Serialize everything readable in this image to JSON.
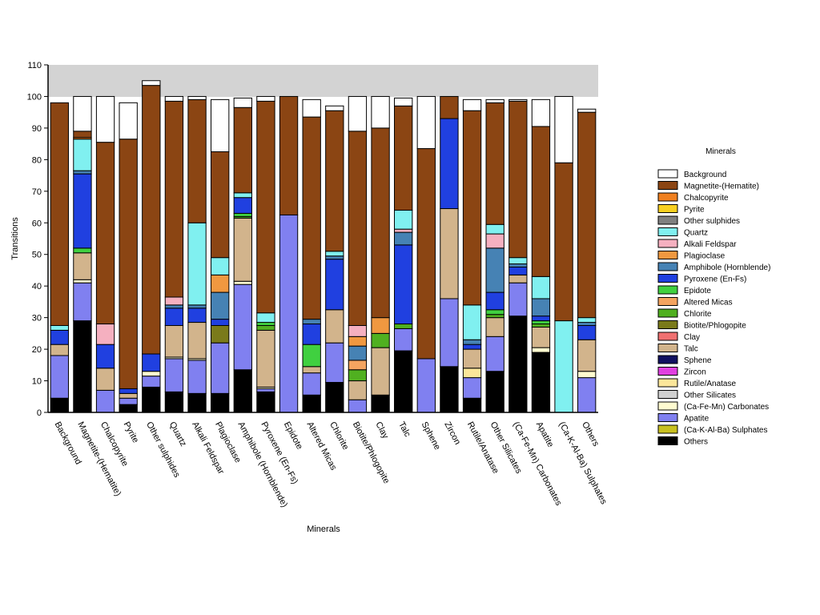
{
  "chart_data": {
    "type": "bar",
    "stacked": true,
    "xlabel": "Minerals",
    "ylabel": "Transitions",
    "ylim": [
      0,
      110
    ],
    "yticks": [
      0,
      10,
      20,
      30,
      40,
      50,
      60,
      70,
      80,
      90,
      100,
      110
    ],
    "legend_title": "Minerals",
    "legend_position": "right",
    "categories": [
      "Background",
      "Magnetite-(Hematite)",
      "Chalcopyrite",
      "Pyrite",
      "Other sulphides",
      "Quartz",
      "Alkali Feldspar",
      "Plagioclase",
      "Amphibole (Hornblende)",
      "Pyroxene (En-Fs)",
      "Epidote",
      "Altered Micas",
      "Chlorite",
      "Biotite/Phlogopite",
      "Clay",
      "Talc",
      "Sphene",
      "Zircon",
      "Rutile/Anatase",
      "Other Silicates",
      "(Ca-Fe-Mn) Carbonates",
      "Apatite",
      "(Ca-K-Al-Ba) Sulphates",
      "Others"
    ],
    "series": [
      {
        "name": "Others",
        "color": "#000000",
        "values": [
          4.5,
          29,
          0,
          2.5,
          8,
          6.5,
          6,
          6,
          13.5,
          6.5,
          0,
          5.5,
          9.5,
          0,
          5.5,
          19.5,
          0,
          14.5,
          4.5,
          13,
          30.5,
          19,
          0,
          0
        ]
      },
      {
        "name": "(Ca-K-Al-Ba) Sulphates",
        "color": "#c8c020",
        "values": [
          0,
          0,
          0,
          0,
          0,
          0,
          0,
          0,
          0,
          0,
          0,
          0,
          0,
          0,
          0,
          0,
          0,
          0,
          0,
          0,
          0,
          0,
          0,
          0
        ]
      },
      {
        "name": "Apatite",
        "color": "#8080f0",
        "values": [
          13.5,
          12,
          7,
          2,
          3.5,
          10.5,
          10.5,
          16,
          27,
          1,
          62.5,
          7,
          12.5,
          4,
          0,
          7,
          17,
          21.5,
          6.5,
          11,
          10.5,
          0,
          0,
          11
        ]
      },
      {
        "name": "(Ca-Fe-Mn) Carbonates",
        "color": "#fffbd0",
        "values": [
          0,
          1,
          0,
          0,
          1.5,
          0.5,
          0.5,
          0,
          1,
          0.5,
          0,
          0,
          0,
          0,
          0,
          0,
          0,
          0,
          0,
          0,
          0,
          1.5,
          0,
          2
        ]
      },
      {
        "name": "Other Silicates",
        "color": "#d0d0d0",
        "values": [
          0,
          0,
          0,
          0,
          0,
          0,
          0,
          0,
          0,
          0,
          0,
          0,
          0,
          0,
          0,
          0,
          0,
          0,
          0,
          0,
          0,
          0,
          0,
          0
        ]
      },
      {
        "name": "Rutile/Anatase",
        "color": "#fbe69a",
        "values": [
          0,
          0,
          0,
          0,
          0,
          0,
          0,
          0,
          0,
          0,
          0,
          0,
          0,
          0,
          0,
          0,
          0,
          0,
          3,
          0,
          0,
          0,
          0,
          0
        ]
      },
      {
        "name": "Zircon",
        "color": "#e040e0",
        "values": [
          0,
          0,
          0,
          0,
          0,
          0,
          0,
          0,
          0,
          0,
          0,
          0,
          0,
          0,
          0,
          0,
          0,
          0,
          0,
          0,
          0,
          0,
          0,
          0
        ]
      },
      {
        "name": "Sphene",
        "color": "#101060",
        "values": [
          0,
          0,
          0,
          0,
          0,
          0,
          0,
          0,
          0,
          0,
          0,
          0,
          0,
          0,
          0,
          0,
          0,
          0,
          0,
          0,
          0,
          0,
          0,
          0
        ]
      },
      {
        "name": "Talc",
        "color": "#d2b48c",
        "values": [
          3.5,
          8.5,
          7,
          1.5,
          0,
          10,
          11.5,
          0,
          20,
          18,
          0,
          2,
          10.5,
          6,
          15,
          0,
          0,
          28.5,
          6,
          6,
          2.5,
          6.5,
          0,
          10
        ]
      },
      {
        "name": "Clay",
        "color": "#f07070",
        "values": [
          0,
          0,
          0,
          0,
          0,
          0,
          0,
          0,
          0,
          0,
          0,
          0,
          0,
          0,
          0,
          0,
          0,
          0,
          0,
          0,
          0,
          0,
          0,
          0
        ]
      },
      {
        "name": "Biotite/Phlogopite",
        "color": "#7a7a1a",
        "values": [
          0,
          0,
          0,
          0,
          0,
          0,
          0,
          5.5,
          0,
          0,
          0,
          0,
          0,
          0,
          0,
          0,
          0,
          0,
          0,
          0,
          0,
          0,
          0,
          0
        ]
      },
      {
        "name": "Chlorite",
        "color": "#50b020",
        "values": [
          0,
          0,
          0,
          0,
          0,
          0,
          0,
          0,
          0.5,
          1.5,
          0,
          0,
          0,
          3.5,
          4.5,
          1.5,
          0,
          0,
          0,
          1,
          0,
          1,
          0,
          0
        ]
      },
      {
        "name": "Altered Micas",
        "color": "#f4a460",
        "values": [
          0,
          0,
          0,
          0,
          0,
          0,
          0,
          0,
          0,
          0,
          0,
          0,
          0,
          3,
          0,
          0,
          0,
          0,
          0,
          0,
          0,
          0,
          0,
          0
        ]
      },
      {
        "name": "Epidote",
        "color": "#40d040",
        "values": [
          0,
          1.5,
          0,
          0,
          0,
          0,
          0,
          0,
          1,
          1,
          0,
          7,
          0,
          0,
          0,
          0,
          0,
          0,
          0,
          1.5,
          0,
          1,
          0,
          0
        ]
      },
      {
        "name": "Pyroxene (En-Fs)",
        "color": "#2040e0",
        "values": [
          4.5,
          23.5,
          7.5,
          1.5,
          5.5,
          5.5,
          4.5,
          2,
          5,
          0,
          0,
          6.5,
          16,
          0,
          0,
          25,
          0,
          28.5,
          1.5,
          5.5,
          2.5,
          1.5,
          0,
          4.5
        ]
      },
      {
        "name": "Amphibole (Hornblende)",
        "color": "#4682b4",
        "values": [
          0,
          1,
          0,
          0,
          0,
          1,
          1,
          8.5,
          0,
          0,
          0,
          1.5,
          1,
          4.5,
          0,
          4,
          0,
          0,
          1.5,
          14,
          1,
          5.5,
          0,
          1
        ]
      },
      {
        "name": "Plagioclase",
        "color": "#f09840",
        "values": [
          0,
          0,
          0,
          0,
          0,
          0,
          0,
          5.5,
          0,
          0,
          0,
          0,
          0,
          3,
          5,
          0,
          0,
          0,
          0,
          0,
          0,
          0,
          0,
          0
        ]
      },
      {
        "name": "Alkali Feldspar",
        "color": "#f5b0c0",
        "values": [
          0,
          0,
          6.5,
          0,
          0,
          2.5,
          0,
          0,
          0,
          0,
          0,
          0,
          0,
          3.5,
          0,
          1,
          0,
          0,
          0,
          4.5,
          0,
          0,
          0,
          0
        ]
      },
      {
        "name": "Quartz",
        "color": "#80f0f0",
        "values": [
          1.5,
          10,
          0,
          0,
          0,
          0,
          26,
          5.5,
          1.5,
          3,
          0,
          0,
          1.5,
          0,
          0,
          6,
          0,
          0,
          11,
          3,
          2,
          7,
          29,
          1.5
        ]
      },
      {
        "name": "Other sulphides",
        "color": "#808080",
        "values": [
          0,
          0,
          0,
          0,
          0,
          0,
          0,
          0,
          0,
          0,
          0,
          0,
          0,
          0,
          0,
          0,
          0,
          0,
          0,
          0,
          0,
          0,
          0,
          0
        ]
      },
      {
        "name": "Pyrite",
        "color": "#f8d020",
        "values": [
          0,
          0,
          0,
          0,
          0,
          0,
          0,
          0,
          0,
          0,
          0,
          0,
          0,
          0,
          0,
          0,
          0,
          0,
          0,
          0,
          0,
          0,
          0,
          0
        ]
      },
      {
        "name": "Chalcopyrite",
        "color": "#f08020",
        "values": [
          0,
          0.5,
          0,
          0,
          0,
          0,
          0,
          0,
          0,
          0,
          0,
          0,
          0,
          0,
          0,
          0,
          0,
          0,
          0,
          0,
          0,
          0,
          0,
          0
        ]
      },
      {
        "name": "Magnetite-(Hematite)",
        "color": "#8b4513",
        "values": [
          70.5,
          2,
          57.5,
          79,
          85,
          62,
          39,
          33.5,
          27,
          67,
          37.5,
          64,
          44.5,
          61.5,
          60,
          33,
          66.5,
          7,
          61.5,
          38.5,
          49.5,
          47.5,
          50,
          65
        ]
      },
      {
        "name": "Background",
        "color": "#ffffff",
        "values": [
          0,
          11,
          14.5,
          11.5,
          1.5,
          1.5,
          1,
          16.5,
          3,
          1.5,
          0,
          5.5,
          1.5,
          11,
          10,
          2.5,
          16.5,
          0,
          3.5,
          1,
          0.5,
          8.5,
          21,
          1
        ]
      }
    ]
  }
}
